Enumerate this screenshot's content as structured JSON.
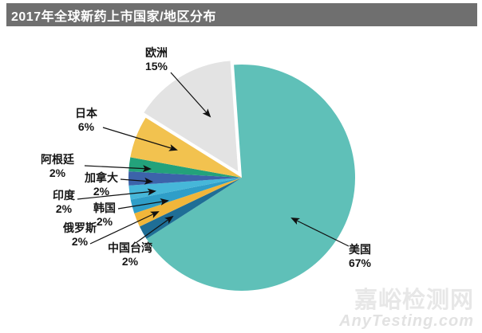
{
  "title_bar": {
    "text": "2017年全球新药上市国家/地区分布",
    "bg_color": "#6f6f6f",
    "text_color": "#ffffff"
  },
  "watermark": {
    "line1": "嘉峪检测网",
    "line2": "AnyTesting.com"
  },
  "chart_data": {
    "type": "pie",
    "title": "2017年全球新药上市国家/地区分布",
    "start_angle_deg": 94,
    "direction": "clockwise",
    "total": 100,
    "slices": [
      {
        "key": "usa",
        "label": "美国",
        "value": 67,
        "pct_label": "67%",
        "color": "#5fc0b8"
      },
      {
        "key": "taiwan-china",
        "label": "中国台湾",
        "value": 2,
        "pct_label": "2%",
        "color": "#1f6e96"
      },
      {
        "key": "russia",
        "label": "俄罗斯",
        "value": 2,
        "pct_label": "2%",
        "color": "#f1b63a"
      },
      {
        "key": "south-korea",
        "label": "韩国",
        "value": 2,
        "pct_label": "2%",
        "color": "#2f9ec8"
      },
      {
        "key": "india",
        "label": "印度",
        "value": 2,
        "pct_label": "2%",
        "color": "#46b7d9"
      },
      {
        "key": "canada",
        "label": "加拿大",
        "value": 2,
        "pct_label": "2%",
        "color": "#3c63aa"
      },
      {
        "key": "argentina",
        "label": "阿根廷",
        "value": 2,
        "pct_label": "2%",
        "color": "#23a27b"
      },
      {
        "key": "japan",
        "label": "日本",
        "value": 6,
        "pct_label": "6%",
        "color": "#f2c24f"
      },
      {
        "key": "europe",
        "label": "欧洲",
        "value": 15,
        "pct_label": "15%",
        "color": "#e3e3e3",
        "exploded": true
      }
    ]
  }
}
